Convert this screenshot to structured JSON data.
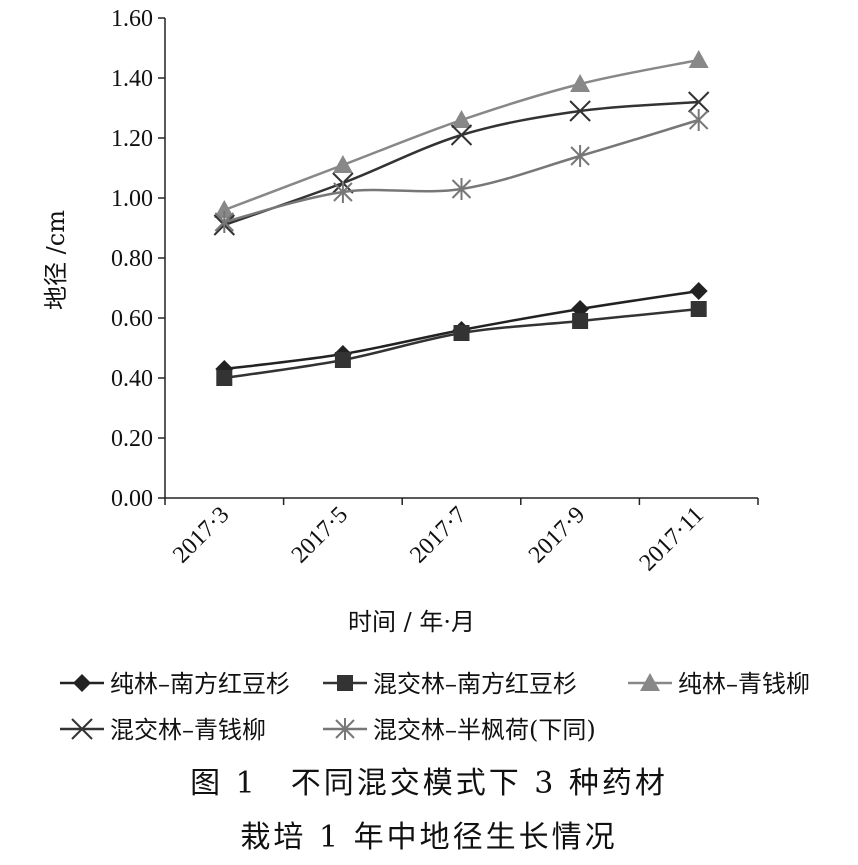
{
  "chart_data": {
    "type": "line",
    "xlabel": "时间 / 年·月",
    "ylabel": "地径 /cm",
    "ylim": [
      0,
      1.6
    ],
    "yticks": [
      "0.00",
      "0.20",
      "0.40",
      "0.60",
      "0.80",
      "1.00",
      "1.20",
      "1.40",
      "1.60"
    ],
    "categories": [
      "2017·3",
      "2017·5",
      "2017·7",
      "2017·9",
      "2017·11"
    ],
    "grid": false,
    "legend_position": "bottom",
    "series": [
      {
        "name": "纯林–南方红豆杉",
        "values": [
          0.43,
          0.48,
          0.56,
          0.63,
          0.69
        ],
        "marker": "diamond",
        "color": "#222222"
      },
      {
        "name": "混交林–南方红豆杉",
        "values": [
          0.4,
          0.46,
          0.55,
          0.59,
          0.63
        ],
        "marker": "square",
        "color": "#333333"
      },
      {
        "name": "纯林–青钱柳",
        "values": [
          0.96,
          1.11,
          1.26,
          1.38,
          1.46
        ],
        "marker": "triangle",
        "color": "#888888"
      },
      {
        "name": "混交林–青钱柳",
        "values": [
          0.91,
          1.05,
          1.21,
          1.29,
          1.32
        ],
        "marker": "x",
        "color": "#333333"
      },
      {
        "name": "混交林–半枫荷(下同)",
        "values": [
          0.92,
          1.02,
          1.03,
          1.14,
          1.26
        ],
        "marker": "asterisk",
        "color": "#777777"
      }
    ]
  },
  "caption": {
    "line1": "图 1　不同混交模式下 3 种药材",
    "line2": "栽培 1 年中地径生长情况"
  }
}
